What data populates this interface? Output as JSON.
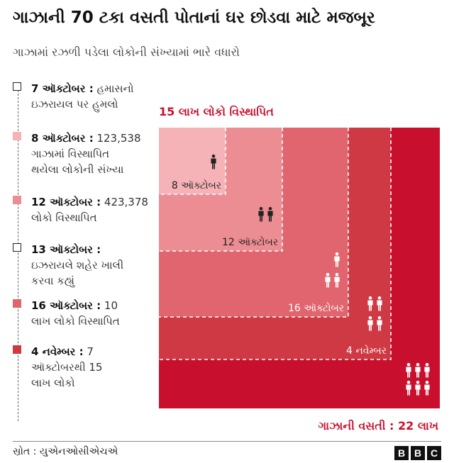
{
  "title": "ગાઝાની 70 ટકા વસતી પોતાનાં ઘર છોડવા માટે મજબૂર",
  "subtitle": "ગાઝામાં રઝળી પડેલા લોકોની સંખ્યામાં ભારે વધારો",
  "timeline": [
    {
      "date": "7 ઑક્ટોબર :",
      "text_inline": " હમાસનો",
      "text_rest": "ઇઝરાયલ પર હુમલો",
      "color": "#ffffff"
    },
    {
      "date": "8 ઑક્ટોબર :",
      "text_inline": " 123,538",
      "text_rest": "ગાઝામાં વિસ્થાપિત થયેલા લોકોની સંખ્યા",
      "color": "#f5b3b7"
    },
    {
      "date": "12 ઑક્ટોબર :",
      "text_inline": " 423,378",
      "text_rest": "લોકો વિસ્થાપિત",
      "color": "#ec8d93"
    },
    {
      "date": "13 ઑક્ટોબર :",
      "text_inline": "",
      "text_rest": "ઇઝરાયલે શહેર ખાલી કરવા કહ્યું",
      "color": "#ffffff"
    },
    {
      "date": "16 ઑક્ટોબર :",
      "text_inline": " 10",
      "text_rest": "લાખ લોકો વિસ્થાપિત",
      "color": "#e0656e"
    },
    {
      "date": "4 નવેમ્બર :",
      "text_inline": " 7",
      "text_rest": "ઑક્ટોબરથી 15 લાખ લોકો",
      "color": "#cf3943"
    }
  ],
  "chart_data": {
    "type": "area",
    "title": "15 લાખ લોકો વિસ્થાપિત",
    "total_label": "ગાઝાની વસતી : 22 લાખ",
    "total_population": 2200000,
    "series": [
      {
        "name": "8 ઑક્ટોબર",
        "value": 123538,
        "color": "#f5b3b7",
        "icon_count": 1
      },
      {
        "name": "12 ઑક્ટોબર",
        "value": 423378,
        "color": "#ec8d93",
        "icon_count": 2
      },
      {
        "name": "16 ઑક્ટોબર",
        "value": 1000000,
        "color": "#e0656e",
        "icon_count": 3
      },
      {
        "name": "4 નવેમ્બર",
        "value": 1500000,
        "color": "#cf3943",
        "icon_count": 4
      }
    ],
    "total_color": "#c8102e",
    "total_icon_count": 6
  },
  "footer": {
    "source": "સ્રોત : યુએનઓસીએચએ",
    "logo": [
      "B",
      "B",
      "C"
    ]
  }
}
